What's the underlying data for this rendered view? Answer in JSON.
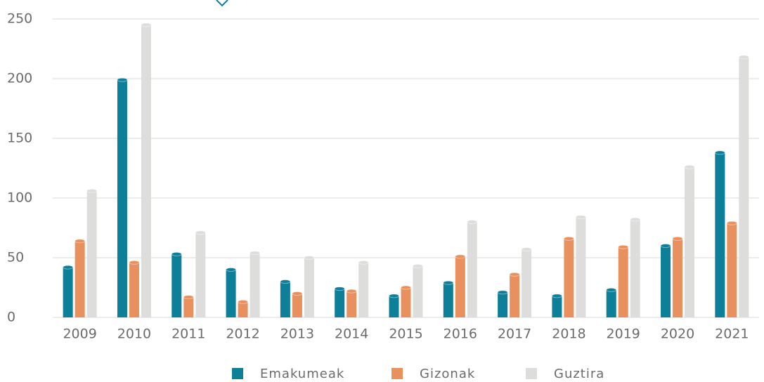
{
  "chart_data": {
    "type": "bar",
    "categories": [
      "2009",
      "2010",
      "2011",
      "2012",
      "2013",
      "2014",
      "2015",
      "2016",
      "2017",
      "2018",
      "2019",
      "2020",
      "2021"
    ],
    "series": [
      {
        "name": "Emakumeak",
        "color": "#0e7f99",
        "values": [
          42,
          199,
          53,
          40,
          30,
          24,
          18,
          29,
          21,
          18,
          23,
          60,
          138
        ]
      },
      {
        "name": "Gizonak",
        "color": "#e8915e",
        "values": [
          64,
          46,
          17,
          13,
          20,
          22,
          25,
          51,
          36,
          66,
          59,
          66,
          79
        ]
      },
      {
        "name": "Guztira",
        "color": "#dddddc",
        "values": [
          106,
          245,
          71,
          54,
          50,
          46,
          43,
          80,
          57,
          84,
          82,
          126,
          218
        ]
      }
    ],
    "ylim": [
      0,
      250
    ],
    "yticks": [
      0,
      50,
      100,
      150,
      200,
      250
    ],
    "grid": true,
    "legend": "bottom"
  }
}
